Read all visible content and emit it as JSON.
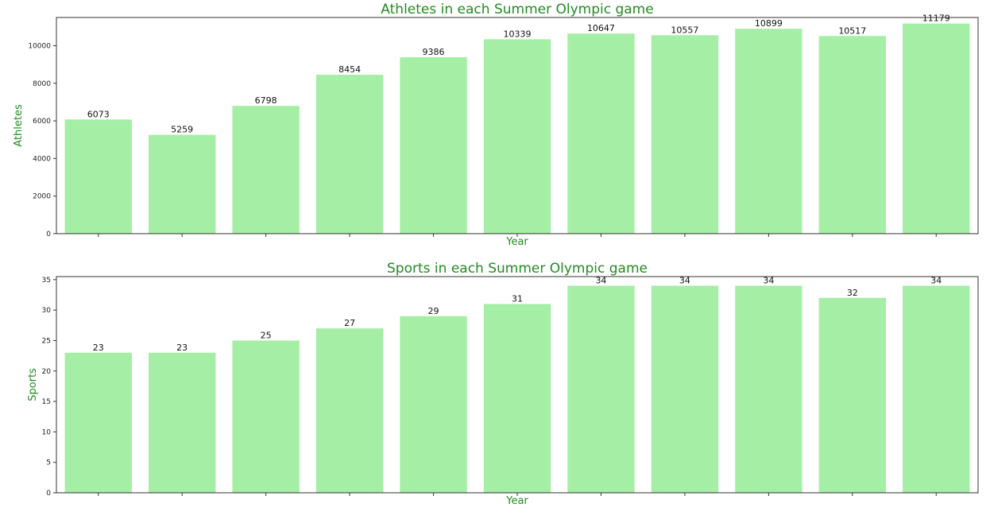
{
  "chart_data": [
    {
      "type": "bar",
      "title": "Athletes in each Summer Olympic game",
      "xlabel": "Year",
      "ylabel": "Athletes",
      "ylim": [
        0,
        11500
      ],
      "yticks": [
        0,
        2000,
        4000,
        6000,
        8000,
        10000
      ],
      "values": [
        6073,
        5259,
        6798,
        8454,
        9386,
        10339,
        10647,
        10557,
        10899,
        10517,
        11179
      ],
      "bar_color": "#a5eea5",
      "title_color": "#228b22",
      "grid": false,
      "legend": "none"
    },
    {
      "type": "bar",
      "title": "Sports in each Summer Olympic game",
      "xlabel": "Year",
      "ylabel": "Sports",
      "ylim": [
        0,
        35.5
      ],
      "yticks": [
        0,
        5,
        10,
        15,
        20,
        25,
        30,
        35
      ],
      "values": [
        23,
        23,
        25,
        27,
        29,
        31,
        34,
        34,
        34,
        32,
        34
      ],
      "bar_color": "#a5eea5",
      "title_color": "#228b22",
      "grid": false,
      "legend": "none"
    }
  ]
}
